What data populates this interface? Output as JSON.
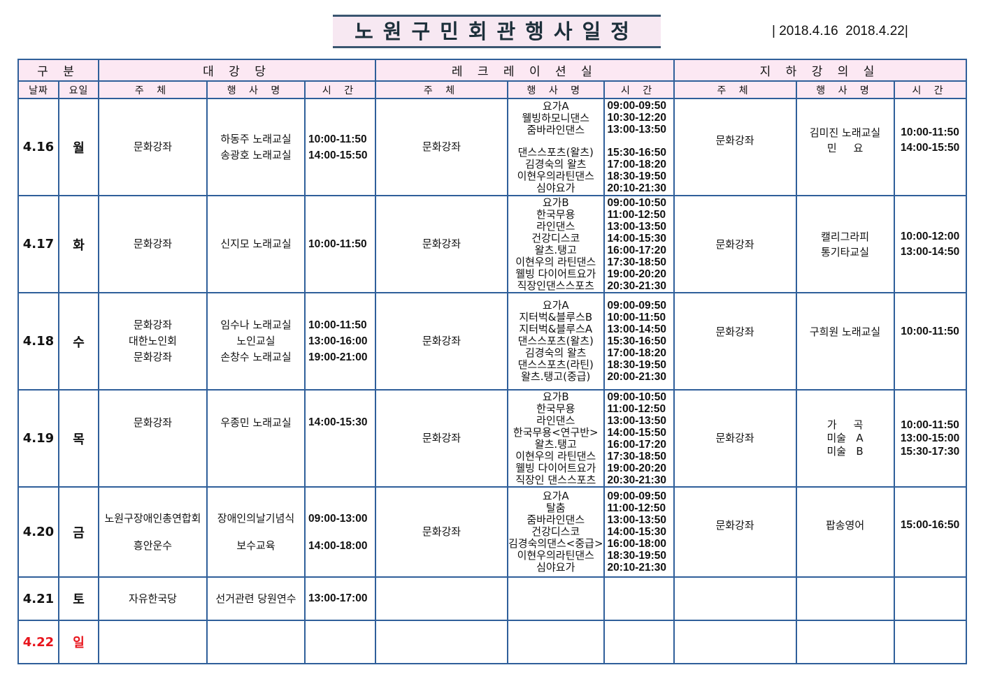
{
  "title": "노원구민회관행사일정",
  "period": "| 2018.4.16  2018.4.22|",
  "header": {
    "category": "구 분",
    "halls": [
      "대 강 당",
      "레 크 레 이 션 실",
      "지 하  강 의 실"
    ],
    "date": "날짜",
    "weekday": "요일",
    "host": "주 체",
    "event": "행 사 명",
    "time": "시 간"
  },
  "colors": {
    "border": "#2f5f9a",
    "header_bg": "#fce8f3",
    "sunday": "#e8141c"
  },
  "rows": [
    {
      "date": "4.16",
      "day": "월",
      "sunday": false,
      "hall": {
        "host": [
          "문화강좌"
        ],
        "event": [
          "하동주 노래교실",
          "송광호 노래교실"
        ],
        "time": [
          "10:00-11:50",
          "14:00-15:50"
        ]
      },
      "rec": {
        "host": [
          "문화강좌"
        ],
        "event": [
          "요가A",
          "웰빙하모니댄스",
          "줌바라인댄스",
          "",
          "댄스스포츠(왈츠)",
          "김경숙의 왈츠",
          "이현우의라틴댄스",
          "심야요가"
        ],
        "time": [
          "09:00-09:50",
          "10:30-12:20",
          "13:00-13:50",
          "",
          "15:30-16:50",
          "17:00-18:20",
          "18:30-19:50",
          "20:10-21:30"
        ]
      },
      "base": {
        "host": [
          "문화강좌"
        ],
        "event": [
          "김미진 노래교실",
          "민     요"
        ],
        "time": [
          "10:00-11:50",
          "14:00-15:50"
        ]
      }
    },
    {
      "date": "4.17",
      "day": "화",
      "sunday": false,
      "hall": {
        "host": [
          "문화강좌"
        ],
        "event": [
          "신지모 노래교실"
        ],
        "time": [
          "10:00-11:50"
        ]
      },
      "rec": {
        "host": [
          "문화강좌"
        ],
        "event": [
          "요가B",
          "한국무용",
          "라인댄스",
          "건강디스코",
          "왈츠.탱고",
          "이현우의 라틴댄스",
          "웰빙 다이어트요가",
          "직장인댄스스포츠"
        ],
        "time": [
          "09:00-10:50",
          "11:00-12:50",
          "13:00-13:50",
          "14:00-15:30",
          "16:00-17:20",
          "17:30-18:50",
          "19:00-20:20",
          "20:30-21:30"
        ]
      },
      "base": {
        "host": [
          "문화강좌"
        ],
        "event": [
          "캘리그라피",
          "통기타교실"
        ],
        "time": [
          "10:00-12:00",
          "13:00-14:50"
        ]
      }
    },
    {
      "date": "4.18",
      "day": "수",
      "sunday": false,
      "hall": {
        "host": [
          "문화강좌",
          "대한노인회",
          "문화강좌"
        ],
        "event": [
          "임수나 노래교실",
          "노인교실",
          "손창수 노래교실"
        ],
        "time": [
          "10:00-11:50",
          "13:00-16:00",
          "19:00-21:00"
        ]
      },
      "rec": {
        "host": [
          "문화강좌"
        ],
        "event": [
          "요가A",
          "지터벅&블루스B",
          "지터벅&블루스A",
          "댄스스포츠(왈츠)",
          "김경숙의 왈츠",
          "댄스스포츠(라틴)",
          "왈츠.탱고(중급)"
        ],
        "time": [
          "09:00-09:50",
          "10:00-11:50",
          "13:00-14:50",
          "15:30-16:50",
          "17:00-18:20",
          "18:30-19:50",
          "20:00-21:30"
        ]
      },
      "base": {
        "host": [
          "문화강좌"
        ],
        "event": [
          "구희원 노래교실"
        ],
        "time": [
          "10:00-11:50"
        ]
      }
    },
    {
      "date": "4.19",
      "day": "목",
      "sunday": false,
      "hall": {
        "host": [
          "문화강좌"
        ],
        "event": [
          "우종민 노래교실"
        ],
        "time": [
          "14:00-15:30"
        ]
      },
      "rec": {
        "host": [
          "문화강좌"
        ],
        "event": [
          "요가B",
          "한국무용",
          "라인댄스",
          "한국무용<연구반>",
          "왈츠.탱고",
          "이현우의 라틴댄스",
          "웰빙 다이어트요가",
          "직장인 댄스스포츠"
        ],
        "time": [
          "09:00-10:50",
          "11:00-12:50",
          "13:00-13:50",
          "14:00-15:50",
          "16:00-17:20",
          "17:30-18:50",
          "19:00-20:20",
          "20:30-21:30"
        ]
      },
      "base": {
        "host": [
          "문화강좌"
        ],
        "event": [
          "가     곡",
          "미술   A",
          "미술   B"
        ],
        "time": [
          "10:00-11:50",
          "13:00-15:00",
          "15:30-17:30"
        ]
      }
    },
    {
      "date": "4.20",
      "day": "금",
      "sunday": false,
      "hall": {
        "host": [
          "노원구장애인총연합회",
          "흥안운수"
        ],
        "event": [
          "장애인의날기념식",
          "보수교육"
        ],
        "time": [
          "09:00-13:00",
          "14:00-18:00"
        ]
      },
      "rec": {
        "host": [
          "문화강좌"
        ],
        "event": [
          "요가A",
          "탈춤",
          "줌바라인댄스",
          "건강디스코",
          "김경숙의댄스<중급>",
          "이현우의라틴댄스",
          "심야요가"
        ],
        "time": [
          "09:00-09:50",
          "11:00-12:50",
          "13:00-13:50",
          "14:00-15:30",
          "16:00-18:00",
          "18:30-19:50",
          "20:10-21:30"
        ]
      },
      "base": {
        "host": [
          "문화강좌"
        ],
        "event": [
          "팝송영어"
        ],
        "time": [
          "15:00-16:50"
        ]
      }
    },
    {
      "date": "4.21",
      "day": "토",
      "sunday": false,
      "hall": {
        "host": [
          "자유한국당"
        ],
        "event": [
          "선거관련 당원연수"
        ],
        "time": [
          "13:00-17:00"
        ]
      },
      "rec": {
        "host": [],
        "event": [],
        "time": []
      },
      "base": {
        "host": [],
        "event": [],
        "time": []
      }
    },
    {
      "date": "4.22",
      "day": "일",
      "sunday": true,
      "hall": {
        "host": [],
        "event": [],
        "time": []
      },
      "rec": {
        "host": [],
        "event": [],
        "time": []
      },
      "base": {
        "host": [],
        "event": [],
        "time": []
      }
    }
  ]
}
